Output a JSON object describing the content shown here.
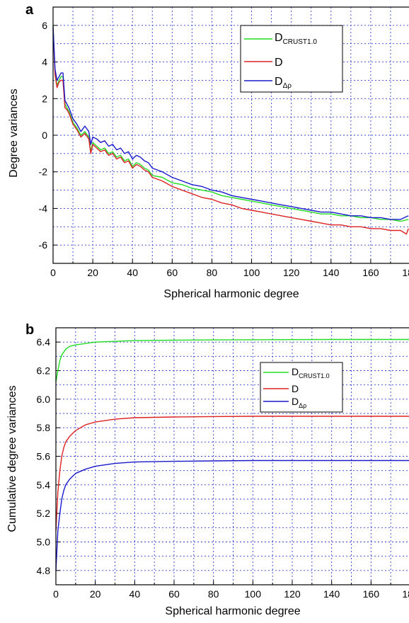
{
  "colors": {
    "green": "#22dd22",
    "red": "#dd2222",
    "blue": "#1a1acc",
    "grid": "#3040d0"
  },
  "chart_data": [
    {
      "panel": "a",
      "type": "line",
      "xlabel": "Spherical harmonic degree",
      "ylabel": "Degree variances",
      "xlim": [
        0,
        180
      ],
      "ylim": [
        -7,
        7
      ],
      "xticks": [
        0,
        20,
        40,
        60,
        80,
        100,
        120,
        140,
        160,
        180
      ],
      "yticks": [
        -6,
        -4,
        -2,
        0,
        2,
        4,
        6
      ],
      "grid": true,
      "legend_position": "top-right",
      "series": [
        {
          "name": "D",
          "name_sub": "CRUST1.0",
          "color": "#22dd22",
          "x": [
            0,
            1,
            2,
            3,
            4,
            5,
            6,
            7,
            8,
            9,
            10,
            12,
            14,
            16,
            18,
            19,
            20,
            22,
            24,
            26,
            28,
            30,
            32,
            34,
            36,
            38,
            40,
            42,
            44,
            46,
            48,
            50,
            55,
            60,
            65,
            70,
            75,
            80,
            85,
            90,
            95,
            100,
            105,
            110,
            115,
            120,
            125,
            130,
            135,
            140,
            145,
            150,
            155,
            160,
            165,
            170,
            175,
            179
          ],
          "y": [
            6.0,
            3.4,
            2.7,
            3.0,
            3.2,
            3.2,
            1.7,
            1.5,
            1.3,
            1.0,
            0.7,
            0.4,
            0.0,
            0.2,
            -0.1,
            -0.9,
            -0.4,
            -0.6,
            -0.8,
            -0.7,
            -1.0,
            -0.9,
            -1.2,
            -1.1,
            -1.4,
            -1.3,
            -1.7,
            -1.5,
            -1.6,
            -1.8,
            -1.9,
            -2.2,
            -2.3,
            -2.6,
            -2.7,
            -2.9,
            -3.0,
            -3.1,
            -3.3,
            -3.4,
            -3.5,
            -3.6,
            -3.7,
            -3.8,
            -3.9,
            -4.0,
            -4.1,
            -4.2,
            -4.3,
            -4.3,
            -4.4,
            -4.4,
            -4.5,
            -4.5,
            -4.6,
            -4.6,
            -4.7,
            -4.6
          ]
        },
        {
          "name": "D",
          "color": "#dd2222",
          "x": [
            0,
            1,
            2,
            3,
            4,
            5,
            6,
            7,
            8,
            9,
            10,
            12,
            14,
            16,
            18,
            19,
            20,
            22,
            24,
            26,
            28,
            30,
            32,
            34,
            36,
            38,
            40,
            42,
            44,
            46,
            48,
            50,
            55,
            60,
            65,
            70,
            75,
            80,
            85,
            90,
            95,
            100,
            105,
            110,
            115,
            120,
            125,
            130,
            135,
            140,
            145,
            150,
            155,
            160,
            165,
            170,
            175,
            178,
            179
          ],
          "y": [
            5.8,
            3.3,
            2.6,
            2.9,
            3.0,
            3.0,
            1.5,
            1.4,
            1.2,
            0.9,
            0.6,
            0.3,
            -0.1,
            0.1,
            -0.2,
            -1.0,
            -0.5,
            -0.7,
            -0.9,
            -0.8,
            -1.1,
            -1.0,
            -1.3,
            -1.2,
            -1.5,
            -1.4,
            -1.8,
            -1.6,
            -1.7,
            -1.9,
            -2.0,
            -2.3,
            -2.5,
            -2.8,
            -3.0,
            -3.2,
            -3.4,
            -3.5,
            -3.7,
            -3.8,
            -4.0,
            -4.1,
            -4.2,
            -4.3,
            -4.4,
            -4.5,
            -4.6,
            -4.7,
            -4.8,
            -4.9,
            -4.9,
            -5.0,
            -5.0,
            -5.1,
            -5.1,
            -5.2,
            -5.2,
            -5.4,
            -5.1
          ]
        },
        {
          "name": "D",
          "name_sub": "Δρ",
          "color": "#1a1acc",
          "x": [
            0,
            1,
            2,
            3,
            4,
            5,
            6,
            7,
            8,
            9,
            10,
            12,
            14,
            16,
            18,
            19,
            20,
            22,
            24,
            26,
            28,
            30,
            32,
            34,
            36,
            38,
            40,
            42,
            44,
            46,
            48,
            50,
            55,
            60,
            65,
            70,
            75,
            80,
            85,
            90,
            95,
            100,
            105,
            110,
            115,
            120,
            125,
            130,
            135,
            140,
            145,
            150,
            155,
            160,
            165,
            170,
            175,
            179
          ],
          "y": [
            5.9,
            3.6,
            3.0,
            3.2,
            3.4,
            3.4,
            1.9,
            1.7,
            1.5,
            1.2,
            0.9,
            0.6,
            0.2,
            0.5,
            0.2,
            -0.5,
            -0.1,
            -0.2,
            -0.4,
            -0.3,
            -0.6,
            -0.5,
            -0.8,
            -0.7,
            -1.0,
            -0.9,
            -1.3,
            -1.1,
            -1.2,
            -1.4,
            -1.5,
            -1.8,
            -2.0,
            -2.3,
            -2.5,
            -2.7,
            -2.8,
            -3.0,
            -3.1,
            -3.3,
            -3.4,
            -3.5,
            -3.6,
            -3.7,
            -3.8,
            -3.9,
            -4.0,
            -4.1,
            -4.2,
            -4.2,
            -4.3,
            -4.4,
            -4.4,
            -4.5,
            -4.5,
            -4.6,
            -4.6,
            -4.4
          ]
        }
      ]
    },
    {
      "panel": "b",
      "type": "line",
      "xlabel": "Spherical harmonic degree",
      "ylabel": "Cumulative degree variances",
      "xlim": [
        0,
        180
      ],
      "ylim": [
        4.7,
        6.5
      ],
      "xticks": [
        0,
        20,
        40,
        60,
        80,
        100,
        120,
        140,
        160,
        180
      ],
      "yticks": [
        4.8,
        5.0,
        5.2,
        5.4,
        5.6,
        5.8,
        6.0,
        6.2,
        6.4
      ],
      "grid": true,
      "legend_position": "right",
      "series": [
        {
          "name": "D",
          "name_sub": "CRUST1.0",
          "color": "#22dd22",
          "x": [
            0,
            1,
            2,
            3,
            4,
            5,
            7,
            10,
            15,
            20,
            30,
            40,
            60,
            80,
            100,
            140,
            180
          ],
          "y": [
            6.12,
            6.2,
            6.27,
            6.31,
            6.33,
            6.35,
            6.37,
            6.38,
            6.39,
            6.4,
            6.405,
            6.41,
            6.413,
            6.415,
            6.416,
            6.418,
            6.418
          ]
        },
        {
          "name": "D",
          "color": "#dd2222",
          "x": [
            0,
            1,
            2,
            3,
            4,
            5,
            7,
            10,
            15,
            20,
            30,
            40,
            60,
            80,
            100,
            140,
            180
          ],
          "y": [
            5.08,
            5.35,
            5.5,
            5.6,
            5.66,
            5.7,
            5.74,
            5.78,
            5.82,
            5.84,
            5.86,
            5.87,
            5.875,
            5.878,
            5.88,
            5.88,
            5.88
          ]
        },
        {
          "name": "D",
          "name_sub": "Δρ",
          "color": "#1a1acc",
          "x": [
            0,
            1,
            2,
            3,
            4,
            5,
            7,
            10,
            15,
            20,
            30,
            40,
            60,
            80,
            100,
            140,
            180
          ],
          "y": [
            4.8,
            5.08,
            5.2,
            5.3,
            5.36,
            5.4,
            5.44,
            5.48,
            5.51,
            5.53,
            5.55,
            5.56,
            5.565,
            5.568,
            5.57,
            5.57,
            5.57
          ]
        }
      ]
    }
  ]
}
